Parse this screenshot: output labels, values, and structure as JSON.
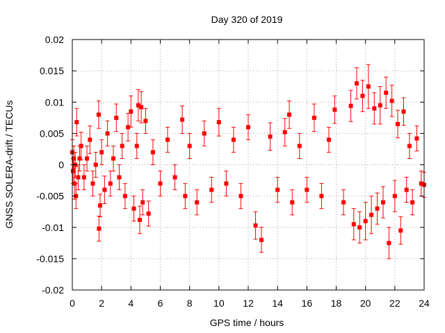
{
  "chart_data": {
    "type": "scatter",
    "title": "Day 320 of 2019",
    "xlabel": "GPS time / hours",
    "ylabel": "GNSS SOLERA-drift / TECUs",
    "xlim": [
      0,
      24
    ],
    "ylim": [
      -0.02,
      0.02
    ],
    "x_ticks": [
      0,
      2,
      4,
      6,
      8,
      10,
      12,
      14,
      16,
      18,
      20,
      22,
      24
    ],
    "x_tick_labels": [
      "0",
      "2",
      "4",
      "6",
      "8",
      "10",
      "12",
      "14",
      "16",
      "18",
      "20",
      "22",
      "24"
    ],
    "y_ticks": [
      -0.02,
      -0.015,
      -0.01,
      -0.005,
      0,
      0.005,
      0.01,
      0.015,
      0.02
    ],
    "y_tick_labels": [
      "-0.02",
      "-0.015",
      "-0.01",
      "-0.005",
      "0",
      "0.005",
      "0.01",
      "0.015",
      "0.02"
    ],
    "grid": true,
    "marker": "square",
    "error_bars": true,
    "colors": {
      "series": "#ff0000",
      "axes": "#000000",
      "grid": "#a0a0a0"
    },
    "series": [
      {
        "x": [
          0.0,
          0.05,
          0.1,
          0.15,
          0.2,
          0.25,
          0.3,
          0.4,
          0.5,
          0.6,
          0.8,
          1.0,
          1.2,
          1.4,
          1.6,
          1.8,
          1.82,
          1.9,
          2.0,
          2.2,
          2.4,
          2.6,
          2.8,
          3.0,
          3.2,
          3.4,
          3.6,
          3.8,
          4.0,
          4.2,
          4.4,
          4.5,
          4.6,
          4.7,
          4.8,
          5.0,
          5.2,
          5.5,
          6.0,
          6.5,
          7.0,
          7.5,
          7.7,
          8.0,
          8.5,
          9.0,
          9.5,
          10.0,
          10.5,
          11.0,
          11.5,
          12.0,
          12.5,
          12.9,
          13.5,
          14.0,
          14.5,
          14.8,
          15.0,
          15.5,
          16.0,
          16.5,
          17.0,
          17.5,
          17.9,
          18.5,
          19.0,
          19.2,
          19.4,
          19.6,
          19.8,
          20.0,
          20.2,
          20.4,
          20.6,
          20.8,
          21.0,
          21.2,
          21.4,
          21.6,
          21.8,
          22.0,
          22.2,
          22.4,
          22.6,
          22.8,
          23.0,
          23.2,
          23.5,
          23.8,
          24.0
        ],
        "y": [
          0.002,
          -0.001,
          0.001,
          -0.003,
          0.0,
          -0.005,
          0.0068,
          -0.002,
          0.001,
          0.003,
          -0.002,
          0.001,
          0.004,
          -0.003,
          0.0,
          0.008,
          -0.0102,
          -0.0065,
          0.002,
          -0.004,
          0.005,
          -0.003,
          0.001,
          0.0075,
          -0.002,
          0.003,
          -0.005,
          0.006,
          0.0085,
          -0.007,
          0.003,
          0.0095,
          -0.0088,
          0.0092,
          -0.006,
          0.007,
          -0.0078,
          0.002,
          -0.003,
          0.004,
          -0.002,
          0.0072,
          -0.005,
          0.003,
          -0.006,
          0.005,
          -0.004,
          0.0068,
          -0.003,
          0.004,
          -0.005,
          0.006,
          -0.0097,
          -0.012,
          0.0045,
          -0.004,
          0.0052,
          0.008,
          -0.006,
          0.003,
          -0.004,
          0.0075,
          -0.005,
          0.004,
          0.0088,
          -0.006,
          0.0094,
          -0.0095,
          0.013,
          -0.01,
          0.011,
          -0.009,
          0.0125,
          -0.008,
          0.009,
          -0.007,
          0.0095,
          -0.006,
          0.0115,
          -0.0125,
          0.0102,
          -0.005,
          0.0065,
          -0.0105,
          0.0085,
          -0.004,
          0.003,
          -0.006,
          0.0042,
          -0.003,
          -0.0032
        ],
        "errors": [
          0.002,
          0.002,
          0.002,
          0.0025,
          0.002,
          0.002,
          0.0022,
          0.002,
          0.002,
          0.0022,
          0.002,
          0.002,
          0.0022,
          0.002,
          0.002,
          0.0022,
          0.002,
          0.0018,
          0.002,
          0.0022,
          0.002,
          0.002,
          0.002,
          0.0022,
          0.002,
          0.002,
          0.002,
          0.0022,
          0.0025,
          0.002,
          0.002,
          0.0025,
          0.0022,
          0.0025,
          0.002,
          0.002,
          0.002,
          0.002,
          0.002,
          0.002,
          0.002,
          0.0022,
          0.002,
          0.002,
          0.002,
          0.002,
          0.002,
          0.0022,
          0.002,
          0.002,
          0.002,
          0.002,
          0.0022,
          0.002,
          0.0022,
          0.002,
          0.0022,
          0.0022,
          0.002,
          0.002,
          0.002,
          0.0022,
          0.002,
          0.002,
          0.0022,
          0.002,
          0.0025,
          0.0025,
          0.0025,
          0.0025,
          0.0025,
          0.003,
          0.0035,
          0.003,
          0.0025,
          0.0025,
          0.003,
          0.0025,
          0.0025,
          0.0025,
          0.0025,
          0.0025,
          0.0022,
          0.0022,
          0.0022,
          0.002,
          0.002,
          0.002,
          0.002,
          0.002,
          0.002
        ]
      }
    ]
  }
}
